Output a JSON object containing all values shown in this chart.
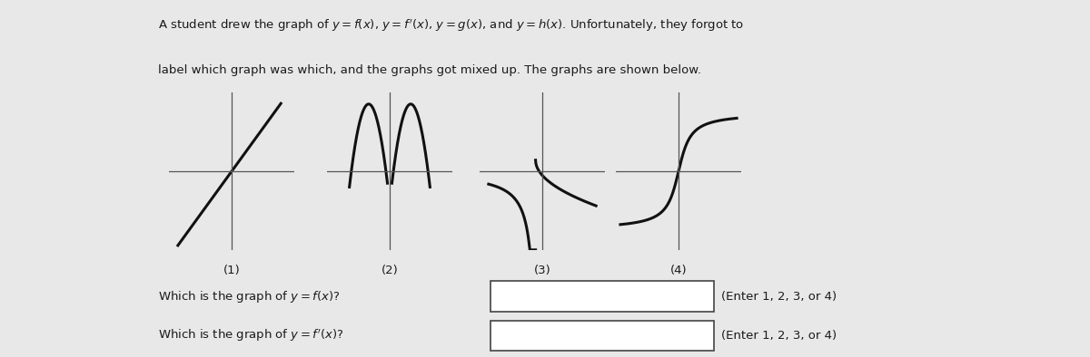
{
  "title_line1": "A student drew the graph of $y = f(x)$, $y = f'(x)$, $y = g(x)$, and $y = h(x)$. Unfortunately, they forgot to",
  "title_line2": "label which graph was which, and the graphs got mixed up. The graphs are shown below.",
  "bg_color": "#e8e8e8",
  "panel_bg": "#e8e8e8",
  "graph_labels": [
    "(1)",
    "(2)",
    "(3)",
    "(4)"
  ],
  "question1": "Which is the graph of $y = f(x)$?",
  "question2": "Which is the graph of $y = f'(x)$?",
  "hint1": "(Enter 1, 2, 3, or 4)",
  "hint2": "(Enter 1, 2, 3, or 4)",
  "text_color": "#1a1a1a",
  "line_color": "#111111",
  "axis_color": "#555555"
}
